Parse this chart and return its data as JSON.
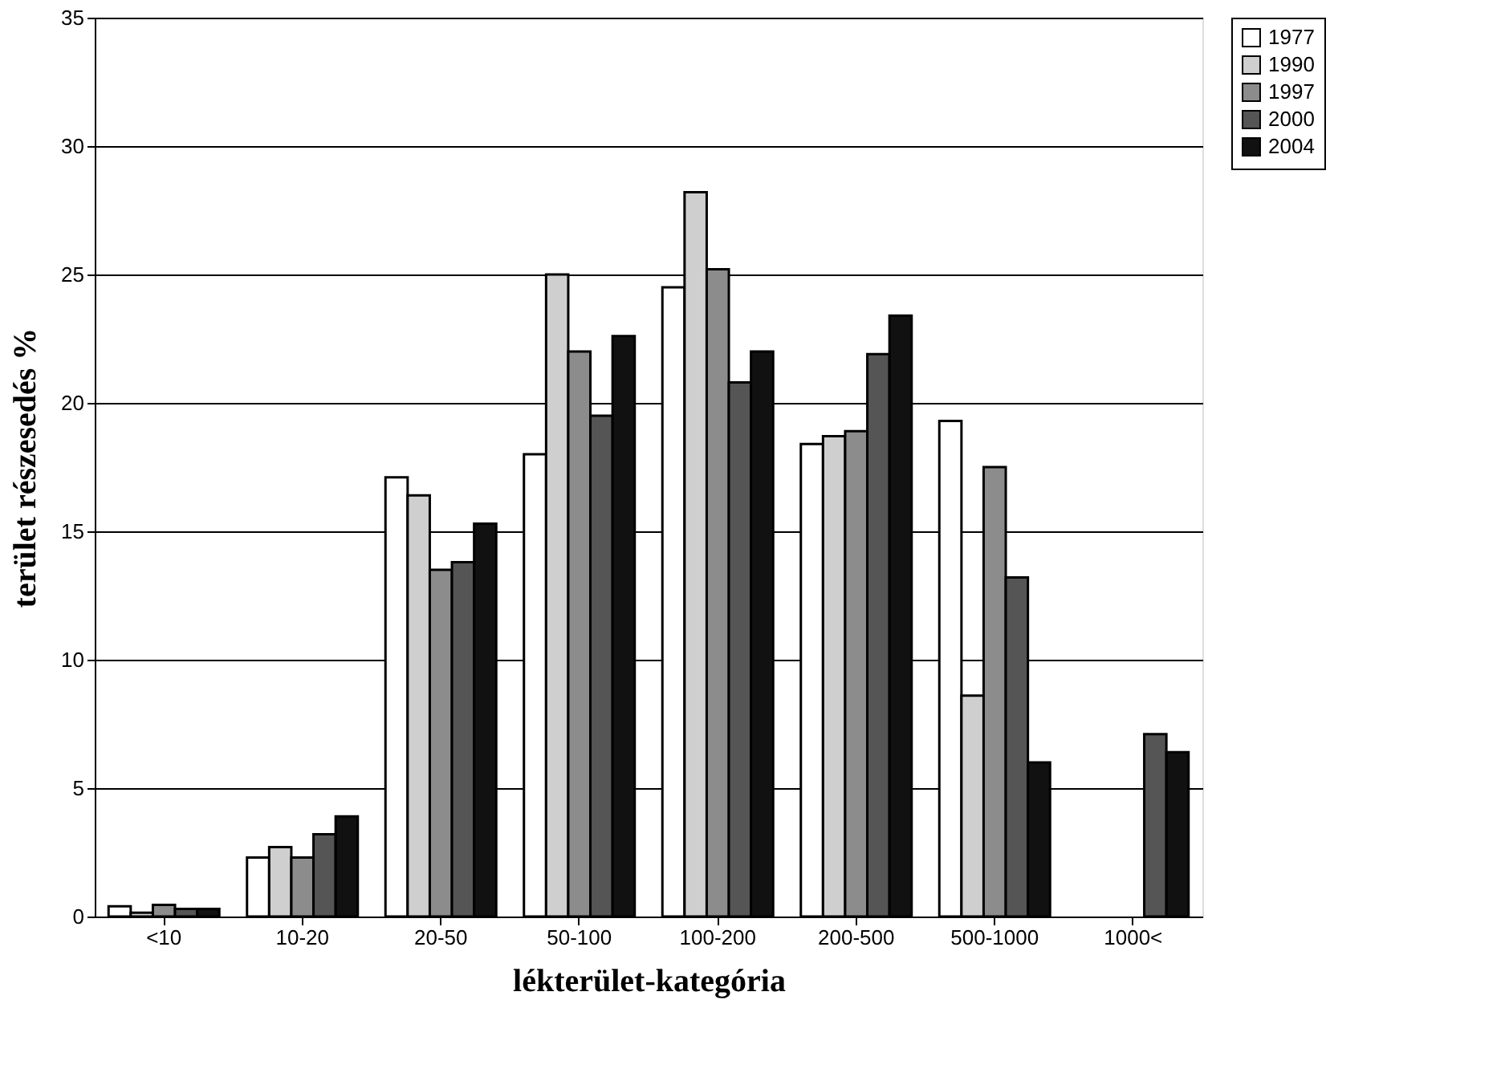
{
  "chart_data": {
    "type": "bar",
    "xlabel": "lékterület-kategória",
    "ylabel": "terület részesedés %",
    "categories": [
      "<10",
      "10-20",
      "20-50",
      "50-100",
      "100-200",
      "200-500",
      "500-1000",
      "1000<"
    ],
    "series": [
      {
        "name": "1977",
        "color": "#ffffff",
        "values": [
          0.4,
          2.3,
          17.1,
          18.0,
          24.5,
          18.4,
          19.3,
          null
        ]
      },
      {
        "name": "1990",
        "color": "#cfcfcf",
        "values": [
          0.15,
          2.7,
          16.4,
          25.0,
          28.2,
          18.7,
          8.6,
          null
        ]
      },
      {
        "name": "1997",
        "color": "#8c8c8c",
        "values": [
          0.45,
          2.3,
          13.5,
          22.0,
          25.2,
          18.9,
          17.5,
          null
        ]
      },
      {
        "name": "2000",
        "color": "#555555",
        "values": [
          0.3,
          3.2,
          13.8,
          19.5,
          20.8,
          21.9,
          13.2,
          7.1
        ]
      },
      {
        "name": "2004",
        "color": "#111111",
        "values": [
          0.3,
          3.9,
          15.3,
          22.6,
          22.0,
          23.4,
          6.0,
          6.4
        ]
      }
    ],
    "ylim": [
      0,
      35
    ],
    "yticks": [
      0,
      5,
      10,
      15,
      20,
      25,
      30,
      35
    ],
    "grid": "y",
    "legend": "right"
  }
}
